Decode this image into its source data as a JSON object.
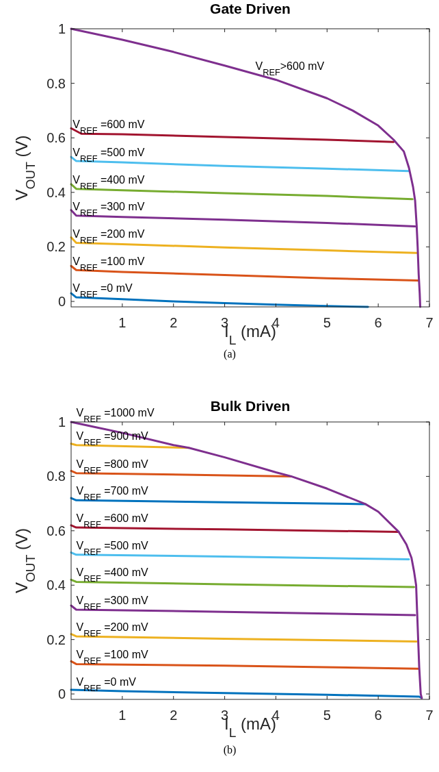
{
  "chart_data": [
    {
      "type": "line",
      "title": "Gate Driven",
      "xlabel": "I$_{L}$ (mA)",
      "ylabel": "V$_{OUT}$ (V)",
      "xlim": [
        0,
        7
      ],
      "xticks": [
        1,
        2,
        3,
        4,
        5,
        6,
        7
      ],
      "ylim": [
        -0.02,
        1
      ],
      "yticks": [
        0,
        0.2,
        0.4,
        0.6,
        0.8,
        1
      ],
      "series": [
        {
          "color": "#0072bd",
          "x": [
            0,
            0.1,
            1,
            2,
            3,
            4,
            5,
            5.8
          ],
          "values": [
            0.03,
            0.015,
            0.008,
            0,
            -0.006,
            -0.012,
            -0.017,
            -0.02
          ]
        },
        {
          "color": "#d95319",
          "x": [
            0,
            0.1,
            1,
            3,
            5,
            6.78
          ],
          "values": [
            0.13,
            0.115,
            0.108,
            0.097,
            0.085,
            0.077
          ]
        },
        {
          "color": "#edb120",
          "x": [
            0,
            0.1,
            1,
            3,
            5,
            6.75
          ],
          "values": [
            0.235,
            0.215,
            0.21,
            0.198,
            0.187,
            0.178
          ]
        },
        {
          "color": "#7e2f8e",
          "x": [
            0,
            0.1,
            1,
            3,
            5,
            6.72
          ],
          "values": [
            0.335,
            0.315,
            0.31,
            0.3,
            0.288,
            0.275
          ]
        },
        {
          "color": "#77ac30",
          "x": [
            0,
            0.1,
            1,
            3,
            5,
            6.67
          ],
          "values": [
            0.43,
            0.413,
            0.408,
            0.397,
            0.387,
            0.375
          ]
        },
        {
          "color": "#4dbeee",
          "x": [
            0,
            0.1,
            1,
            3,
            5,
            6.6
          ],
          "values": [
            0.53,
            0.515,
            0.51,
            0.497,
            0.487,
            0.478
          ]
        },
        {
          "color": "#a2142f",
          "x": [
            0,
            0.1,
            0.2,
            1,
            3,
            5,
            6.3
          ],
          "values": [
            0.635,
            0.625,
            0.615,
            0.613,
            0.603,
            0.593,
            0.585
          ]
        },
        {
          "color": "#7e2f8e",
          "x": [
            0,
            0.5,
            1,
            2,
            3,
            4,
            5,
            5.5,
            6,
            6.3,
            6.5,
            6.6,
            6.68,
            6.72,
            6.75,
            6.77,
            6.79,
            6.81,
            6.82
          ],
          "values": [
            1,
            0.98,
            0.96,
            0.915,
            0.865,
            0.813,
            0.745,
            0.7,
            0.645,
            0.593,
            0.55,
            0.49,
            0.42,
            0.37,
            0.28,
            0.2,
            0.1,
            0.03,
            -0.02
          ]
        }
      ],
      "annotations": [
        {
          "text": "V$_{REF}$ =0 mV",
          "x": 0.03,
          "y": 0.015
        },
        {
          "text": "V$_{REF}$ =100 mV",
          "x": 0.03,
          "y": 0.113
        },
        {
          "text": "V$_{REF}$ =200 mV",
          "x": 0.03,
          "y": 0.213
        },
        {
          "text": "V$_{REF}$ =300 mV",
          "x": 0.03,
          "y": 0.313
        },
        {
          "text": "V$_{REF}$ =400 mV",
          "x": 0.03,
          "y": 0.411
        },
        {
          "text": "V$_{REF}$ =500 mV",
          "x": 0.03,
          "y": 0.513
        },
        {
          "text": "V$_{REF}$ =600 mV",
          "x": 0.03,
          "y": 0.615
        },
        {
          "text": "V$_{REF}$>600 mV",
          "x": 3.6,
          "y": 0.83
        },
        "(a)"
      ]
    },
    {
      "type": "line",
      "title": "Bulk Driven",
      "xlabel": "I$_{L}$ (mA)",
      "ylabel": "V$_{OUT}$ (V)",
      "xlim": [
        0,
        7
      ],
      "xticks": [
        1,
        2,
        3,
        4,
        5,
        6,
        7
      ],
      "ylim": [
        -0.02,
        1
      ],
      "yticks": [
        0,
        0.2,
        0.4,
        0.6,
        0.8,
        1
      ],
      "series": [
        {
          "color": "#0072bd",
          "x": [
            0,
            1,
            3,
            5,
            6.8,
            6.85
          ],
          "values": [
            0.015,
            0.01,
            0.003,
            -0.003,
            -0.01,
            -0.015
          ]
        },
        {
          "color": "#d95319",
          "x": [
            0,
            0.1,
            3,
            6.78
          ],
          "values": [
            0.12,
            0.11,
            0.104,
            0.093
          ]
        },
        {
          "color": "#edb120",
          "x": [
            0,
            0.1,
            3,
            6.75
          ],
          "values": [
            0.22,
            0.212,
            0.203,
            0.193
          ]
        },
        {
          "color": "#7e2f8e",
          "x": [
            0,
            0.1,
            3,
            6.72
          ],
          "values": [
            0.325,
            0.31,
            0.302,
            0.29
          ]
        },
        {
          "color": "#77ac30",
          "x": [
            0,
            0.1,
            3,
            6.7
          ],
          "values": [
            0.42,
            0.412,
            0.403,
            0.393
          ]
        },
        {
          "color": "#4dbeee",
          "x": [
            0,
            0.1,
            3,
            6.6
          ],
          "values": [
            0.52,
            0.512,
            0.505,
            0.495
          ]
        },
        {
          "color": "#a2142f",
          "x": [
            0,
            0.1,
            3,
            6.4
          ],
          "values": [
            0.62,
            0.612,
            0.605,
            0.596
          ]
        },
        {
          "color": "#0072bd",
          "x": [
            0,
            0.1,
            3,
            5.75
          ],
          "values": [
            0.72,
            0.712,
            0.705,
            0.698
          ]
        },
        {
          "color": "#d95319",
          "x": [
            0,
            0.1,
            4.3
          ],
          "values": [
            0.82,
            0.812,
            0.8
          ]
        },
        {
          "color": "#edb120",
          "x": [
            0,
            0.1,
            2.3
          ],
          "values": [
            0.92,
            0.915,
            0.905
          ]
        },
        {
          "color": "#7e2f8e",
          "x": [
            0,
            0.5,
            1,
            2,
            2.3,
            3,
            4,
            4.3,
            5,
            5.75,
            6,
            6.4,
            6.55,
            6.65,
            6.7,
            6.74,
            6.76,
            6.78,
            6.8,
            6.83,
            6.85
          ],
          "values": [
            1,
            0.98,
            0.96,
            0.915,
            0.905,
            0.87,
            0.815,
            0.8,
            0.755,
            0.698,
            0.67,
            0.596,
            0.55,
            0.5,
            0.45,
            0.4,
            0.3,
            0.2,
            0.1,
            0,
            -0.015
          ]
        }
      ],
      "annotations": [
        {
          "text": "V$_{REF}$ =0 mV",
          "x": 0.1,
          "y": 0.01
        },
        {
          "text": "V$_{REF}$ =100 mV",
          "x": 0.1,
          "y": 0.11
        },
        {
          "text": "V$_{REF}$ =200 mV",
          "x": 0.1,
          "y": 0.212
        },
        {
          "text": "V$_{REF}$ =300 mV",
          "x": 0.1,
          "y": 0.31
        },
        {
          "text": "V$_{REF}$ =400 mV",
          "x": 0.1,
          "y": 0.412
        },
        {
          "text": "V$_{REF}$ =500 mV",
          "x": 0.1,
          "y": 0.512
        },
        {
          "text": "V$_{REF}$ =600 mV",
          "x": 0.1,
          "y": 0.612
        },
        {
          "text": "V$_{REF}$ =700 mV",
          "x": 0.1,
          "y": 0.712
        },
        {
          "text": "V$_{REF}$ =800 mV",
          "x": 0.1,
          "y": 0.812
        },
        {
          "text": "V$_{REF}$ =900 mV",
          "x": 0.1,
          "y": 0.915
        },
        {
          "text": "V$_{REF}$ =1000 mV",
          "x": 0.1,
          "y": 1
        },
        "(b)"
      ]
    }
  ]
}
